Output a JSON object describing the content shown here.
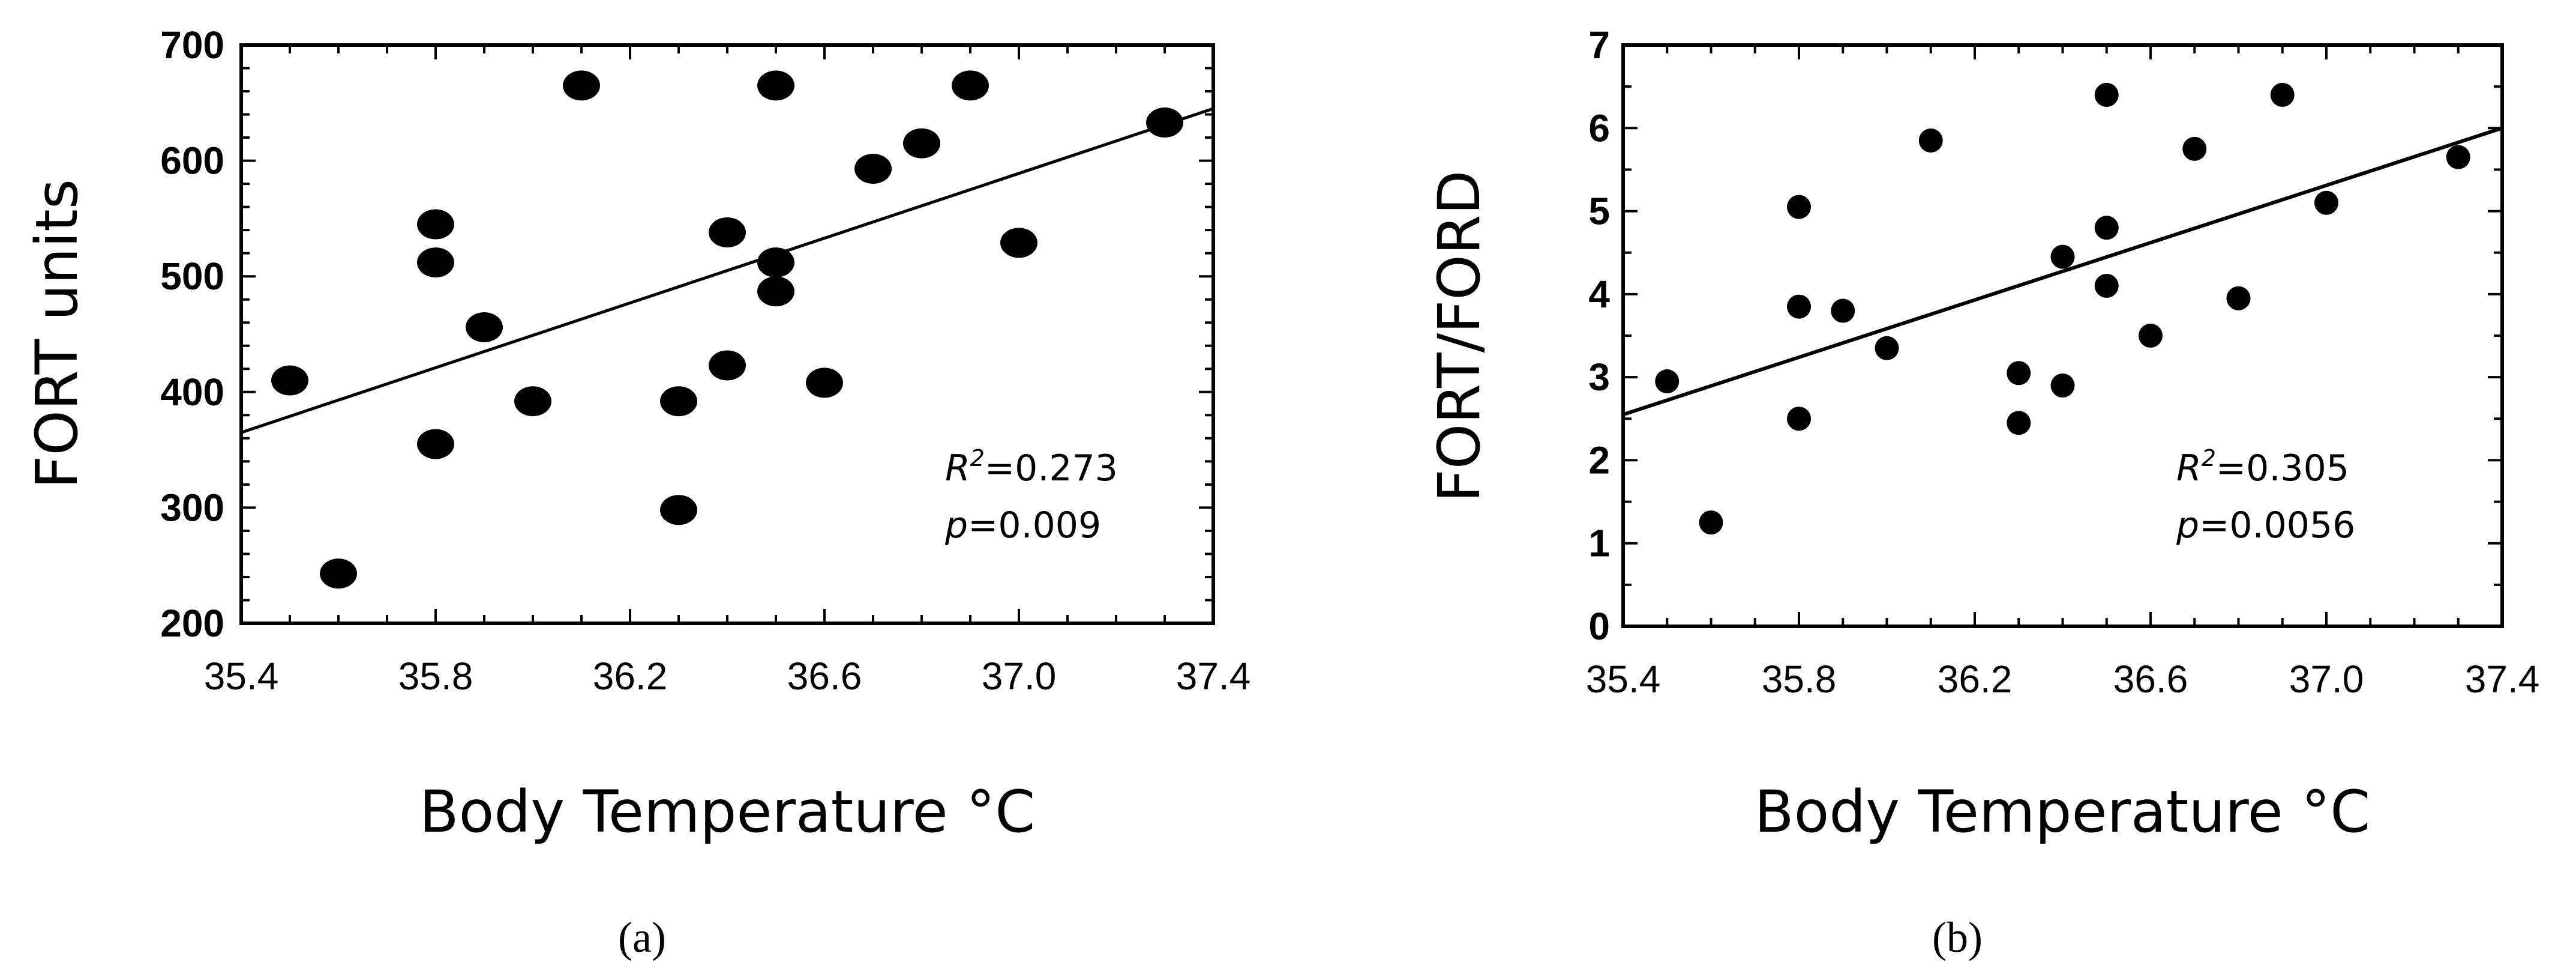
{
  "chart_data": [
    {
      "type": "scatter",
      "panel_label": "(a)",
      "xlabel": "Body Temperature °C",
      "ylabel": "FORT units",
      "xlim": [
        35.4,
        37.4
      ],
      "ylim": [
        200,
        700
      ],
      "xticks": [
        35.4,
        35.8,
        36.2,
        36.6,
        37.0,
        37.4
      ],
      "xtick_labels": [
        "35.4",
        "35.8",
        "36.2",
        "36.6",
        "37.0",
        "37.4"
      ],
      "yticks": [
        200,
        300,
        400,
        500,
        600,
        700
      ],
      "ytick_labels": [
        "200",
        "300",
        "400",
        "500",
        "600",
        "700"
      ],
      "grid": false,
      "points": [
        {
          "x": 35.5,
          "y": 410
        },
        {
          "x": 35.6,
          "y": 243
        },
        {
          "x": 35.8,
          "y": 355
        },
        {
          "x": 35.8,
          "y": 512
        },
        {
          "x": 35.8,
          "y": 545
        },
        {
          "x": 35.9,
          "y": 456
        },
        {
          "x": 36.0,
          "y": 392
        },
        {
          "x": 36.1,
          "y": 665
        },
        {
          "x": 36.3,
          "y": 298
        },
        {
          "x": 36.3,
          "y": 392
        },
        {
          "x": 36.4,
          "y": 423
        },
        {
          "x": 36.4,
          "y": 538
        },
        {
          "x": 36.5,
          "y": 487
        },
        {
          "x": 36.5,
          "y": 512
        },
        {
          "x": 36.5,
          "y": 665
        },
        {
          "x": 36.6,
          "y": 408
        },
        {
          "x": 36.7,
          "y": 593
        },
        {
          "x": 36.8,
          "y": 615
        },
        {
          "x": 36.9,
          "y": 665
        },
        {
          "x": 37.0,
          "y": 529
        },
        {
          "x": 37.3,
          "y": 633
        }
      ],
      "trendline": {
        "x": [
          35.4,
          37.4
        ],
        "y": [
          365,
          645
        ]
      },
      "annotation": {
        "r2_symbol": "R",
        "r2_exponent": "2",
        "r2_value": "=0.273",
        "p_symbol": "p",
        "p_value": "=0.009"
      },
      "marker_color": "#000000",
      "line_color": "#000000"
    },
    {
      "type": "scatter",
      "panel_label": "(b)",
      "xlabel": "Body Temperature °C",
      "ylabel": "FORT/FORD",
      "xlim": [
        35.4,
        37.4
      ],
      "ylim": [
        0,
        7
      ],
      "xticks": [
        35.4,
        35.8,
        36.2,
        36.6,
        37.0,
        37.4
      ],
      "xtick_labels": [
        "35.4",
        "35.8",
        "36.2",
        "36.6",
        "37.0",
        "37.4"
      ],
      "yticks": [
        0,
        1,
        2,
        3,
        4,
        5,
        6,
        7
      ],
      "ytick_labels": [
        "0",
        "1",
        "2",
        "3",
        "4",
        "5",
        "6",
        "7"
      ],
      "grid": false,
      "points": [
        {
          "x": 35.5,
          "y": 2.95
        },
        {
          "x": 35.6,
          "y": 1.25
        },
        {
          "x": 35.8,
          "y": 2.5
        },
        {
          "x": 35.8,
          "y": 3.85
        },
        {
          "x": 35.8,
          "y": 5.05
        },
        {
          "x": 35.9,
          "y": 3.8
        },
        {
          "x": 36.0,
          "y": 3.35
        },
        {
          "x": 36.1,
          "y": 5.85
        },
        {
          "x": 36.3,
          "y": 2.45
        },
        {
          "x": 36.3,
          "y": 3.05
        },
        {
          "x": 36.4,
          "y": 2.9
        },
        {
          "x": 36.4,
          "y": 4.45
        },
        {
          "x": 36.5,
          "y": 4.1
        },
        {
          "x": 36.5,
          "y": 4.8
        },
        {
          "x": 36.5,
          "y": 6.4
        },
        {
          "x": 36.6,
          "y": 3.5
        },
        {
          "x": 36.7,
          "y": 5.75
        },
        {
          "x": 36.8,
          "y": 3.95
        },
        {
          "x": 36.9,
          "y": 6.4
        },
        {
          "x": 37.0,
          "y": 5.1
        },
        {
          "x": 37.3,
          "y": 5.65
        }
      ],
      "trendline": {
        "x": [
          35.4,
          37.4
        ],
        "y": [
          2.55,
          6.0
        ]
      },
      "annotation": {
        "r2_symbol": "R",
        "r2_exponent": "2",
        "r2_value": "=0.305",
        "p_symbol": "p",
        "p_value": "=0.0056"
      },
      "marker_color": "#000000",
      "line_color": "#000000"
    }
  ]
}
